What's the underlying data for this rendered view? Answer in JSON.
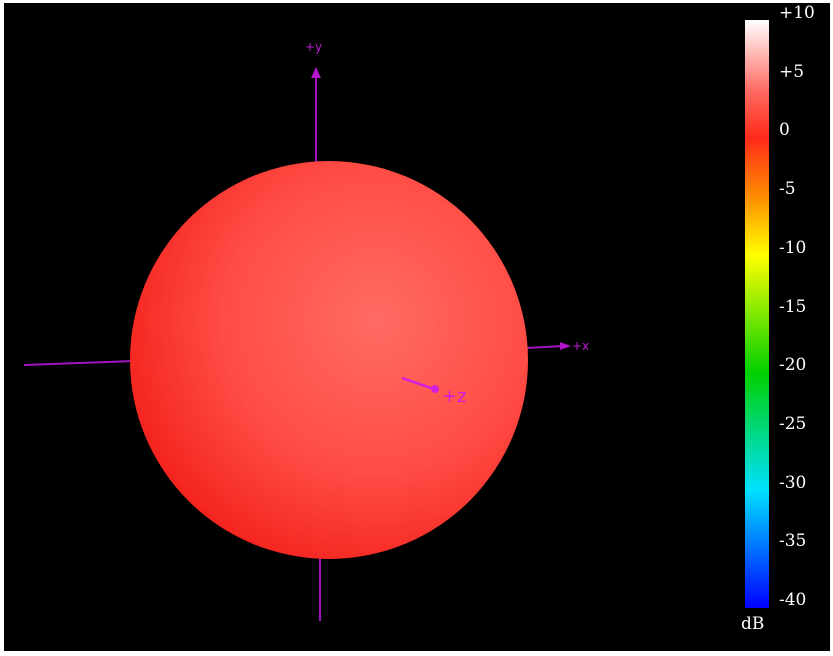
{
  "chart_data": {
    "type": "3d-radiation-pattern",
    "title": "",
    "axes": {
      "x_label": "+x",
      "y_label": "+y",
      "z_label": "+z"
    },
    "pattern": {
      "shape": "sphere",
      "level_db": 0,
      "color": "#ff3b36"
    },
    "colorbar": {
      "unit": "dB",
      "min": -40,
      "max": 10,
      "ticks": [
        "+10",
        "+5",
        "0",
        "-5",
        "-10",
        "-15",
        "-20",
        "-25",
        "-30",
        "-35",
        "-40"
      ],
      "colors": {
        "top": "#ffffff",
        "zero": "#ff2a1a",
        "minus_5": "#ff8c00",
        "minus_10": "#ffff00",
        "minus_20": "#00d000",
        "minus_30": "#00e0ff",
        "bottom": "#0000ff"
      }
    }
  }
}
